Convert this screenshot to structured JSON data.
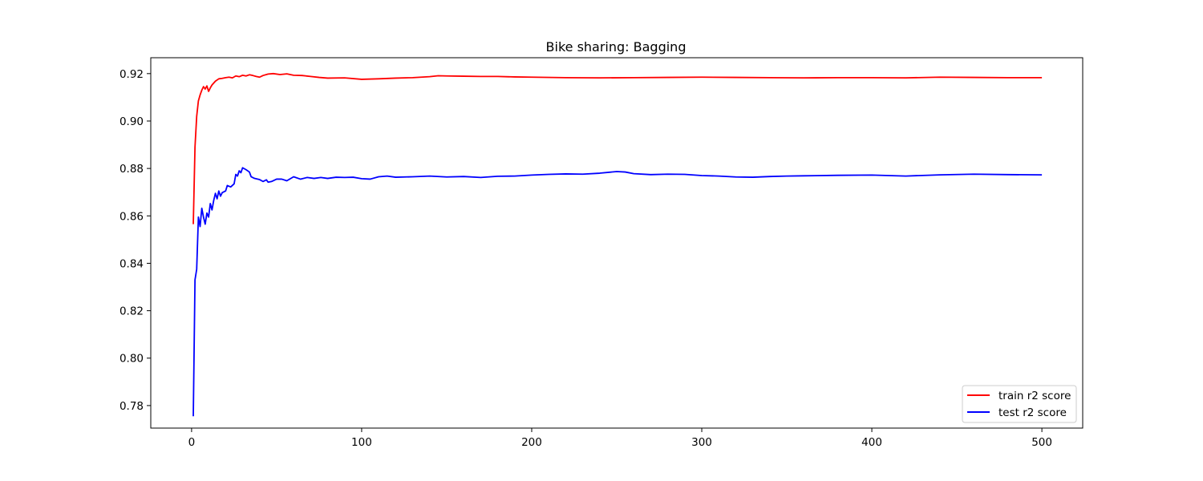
{
  "chart_data": {
    "type": "line",
    "title": "Bike sharing: Bagging",
    "xlabel": "",
    "ylabel": "",
    "xlim": [
      -24,
      524
    ],
    "ylim": [
      0.7705,
      0.9267
    ],
    "xticks": [
      0,
      100,
      200,
      300,
      400,
      500
    ],
    "xtick_labels": [
      "0",
      "100",
      "200",
      "300",
      "400",
      "500"
    ],
    "yticks": [
      0.78,
      0.8,
      0.82,
      0.84,
      0.86,
      0.88,
      0.9,
      0.92
    ],
    "ytick_labels": [
      "0.78",
      "0.80",
      "0.82",
      "0.84",
      "0.86",
      "0.88",
      "0.90",
      "0.92"
    ],
    "grid": false,
    "legend_placement": "lower-right",
    "series": [
      {
        "name": "train r2 score",
        "color": "#ff0000",
        "points": [
          [
            1,
            0.8565
          ],
          [
            2,
            0.889
          ],
          [
            3,
            0.902
          ],
          [
            4,
            0.9085
          ],
          [
            5,
            0.911
          ],
          [
            6,
            0.913
          ],
          [
            7,
            0.9145
          ],
          [
            8,
            0.9135
          ],
          [
            9,
            0.9148
          ],
          [
            10,
            0.9125
          ],
          [
            11,
            0.914
          ],
          [
            12,
            0.9152
          ],
          [
            14,
            0.9168
          ],
          [
            16,
            0.9178
          ],
          [
            18,
            0.918
          ],
          [
            20,
            0.9183
          ],
          [
            22,
            0.9185
          ],
          [
            24,
            0.9182
          ],
          [
            26,
            0.919
          ],
          [
            28,
            0.9187
          ],
          [
            30,
            0.9193
          ],
          [
            32,
            0.919
          ],
          [
            34,
            0.9195
          ],
          [
            36,
            0.9192
          ],
          [
            38,
            0.9188
          ],
          [
            40,
            0.9185
          ],
          [
            42,
            0.9192
          ],
          [
            45,
            0.9198
          ],
          [
            48,
            0.92
          ],
          [
            52,
            0.9196
          ],
          [
            56,
            0.9199
          ],
          [
            60,
            0.9193
          ],
          [
            65,
            0.9192
          ],
          [
            70,
            0.9188
          ],
          [
            75,
            0.9184
          ],
          [
            80,
            0.9181
          ],
          [
            90,
            0.9182
          ],
          [
            100,
            0.9176
          ],
          [
            110,
            0.9178
          ],
          [
            120,
            0.9181
          ],
          [
            130,
            0.9183
          ],
          [
            140,
            0.9187
          ],
          [
            145,
            0.9191
          ],
          [
            150,
            0.919
          ],
          [
            160,
            0.9189
          ],
          [
            170,
            0.9188
          ],
          [
            180,
            0.9188
          ],
          [
            190,
            0.9186
          ],
          [
            200,
            0.9185
          ],
          [
            220,
            0.9183
          ],
          [
            240,
            0.9182
          ],
          [
            260,
            0.9183
          ],
          [
            280,
            0.9184
          ],
          [
            300,
            0.9185
          ],
          [
            320,
            0.9184
          ],
          [
            340,
            0.9183
          ],
          [
            360,
            0.9182
          ],
          [
            380,
            0.9183
          ],
          [
            400,
            0.9183
          ],
          [
            420,
            0.9182
          ],
          [
            440,
            0.9185
          ],
          [
            460,
            0.9184
          ],
          [
            480,
            0.9183
          ],
          [
            500,
            0.9183
          ]
        ]
      },
      {
        "name": "test r2 score",
        "color": "#0000ff",
        "points": [
          [
            1,
            0.7755
          ],
          [
            2,
            0.833
          ],
          [
            3,
            0.8375
          ],
          [
            4,
            0.8595
          ],
          [
            5,
            0.8555
          ],
          [
            6,
            0.8632
          ],
          [
            7,
            0.8595
          ],
          [
            8,
            0.8565
          ],
          [
            9,
            0.8612
          ],
          [
            10,
            0.8595
          ],
          [
            11,
            0.8652
          ],
          [
            12,
            0.8625
          ],
          [
            13,
            0.8665
          ],
          [
            14,
            0.8695
          ],
          [
            15,
            0.8672
          ],
          [
            16,
            0.8705
          ],
          [
            17,
            0.8683
          ],
          [
            18,
            0.8698
          ],
          [
            20,
            0.8705
          ],
          [
            21,
            0.8728
          ],
          [
            23,
            0.8722
          ],
          [
            25,
            0.8735
          ],
          [
            26,
            0.8775
          ],
          [
            27,
            0.8768
          ],
          [
            28,
            0.879
          ],
          [
            29,
            0.8782
          ],
          [
            30,
            0.8803
          ],
          [
            32,
            0.8795
          ],
          [
            34,
            0.8785
          ],
          [
            35,
            0.8765
          ],
          [
            37,
            0.8758
          ],
          [
            40,
            0.8753
          ],
          [
            42,
            0.8745
          ],
          [
            44,
            0.8752
          ],
          [
            45,
            0.8742
          ],
          [
            47,
            0.8745
          ],
          [
            50,
            0.8755
          ],
          [
            53,
            0.8755
          ],
          [
            56,
            0.8748
          ],
          [
            60,
            0.8765
          ],
          [
            64,
            0.8755
          ],
          [
            68,
            0.8762
          ],
          [
            72,
            0.8758
          ],
          [
            76,
            0.8762
          ],
          [
            80,
            0.8758
          ],
          [
            85,
            0.8763
          ],
          [
            90,
            0.8762
          ],
          [
            95,
            0.8763
          ],
          [
            100,
            0.8757
          ],
          [
            105,
            0.8755
          ],
          [
            110,
            0.8765
          ],
          [
            115,
            0.8768
          ],
          [
            120,
            0.8763
          ],
          [
            130,
            0.8765
          ],
          [
            140,
            0.8768
          ],
          [
            150,
            0.8764
          ],
          [
            160,
            0.8766
          ],
          [
            170,
            0.8762
          ],
          [
            180,
            0.8767
          ],
          [
            190,
            0.8768
          ],
          [
            200,
            0.8772
          ],
          [
            210,
            0.8775
          ],
          [
            220,
            0.8777
          ],
          [
            230,
            0.8776
          ],
          [
            240,
            0.878
          ],
          [
            250,
            0.8787
          ],
          [
            255,
            0.8785
          ],
          [
            260,
            0.8778
          ],
          [
            270,
            0.8774
          ],
          [
            280,
            0.8776
          ],
          [
            290,
            0.8775
          ],
          [
            300,
            0.877
          ],
          [
            310,
            0.8768
          ],
          [
            320,
            0.8764
          ],
          [
            330,
            0.8763
          ],
          [
            340,
            0.8766
          ],
          [
            350,
            0.8768
          ],
          [
            360,
            0.8769
          ],
          [
            380,
            0.8771
          ],
          [
            400,
            0.8772
          ],
          [
            420,
            0.8768
          ],
          [
            440,
            0.8773
          ],
          [
            460,
            0.8776
          ],
          [
            480,
            0.8774
          ],
          [
            500,
            0.8773
          ]
        ]
      }
    ]
  }
}
